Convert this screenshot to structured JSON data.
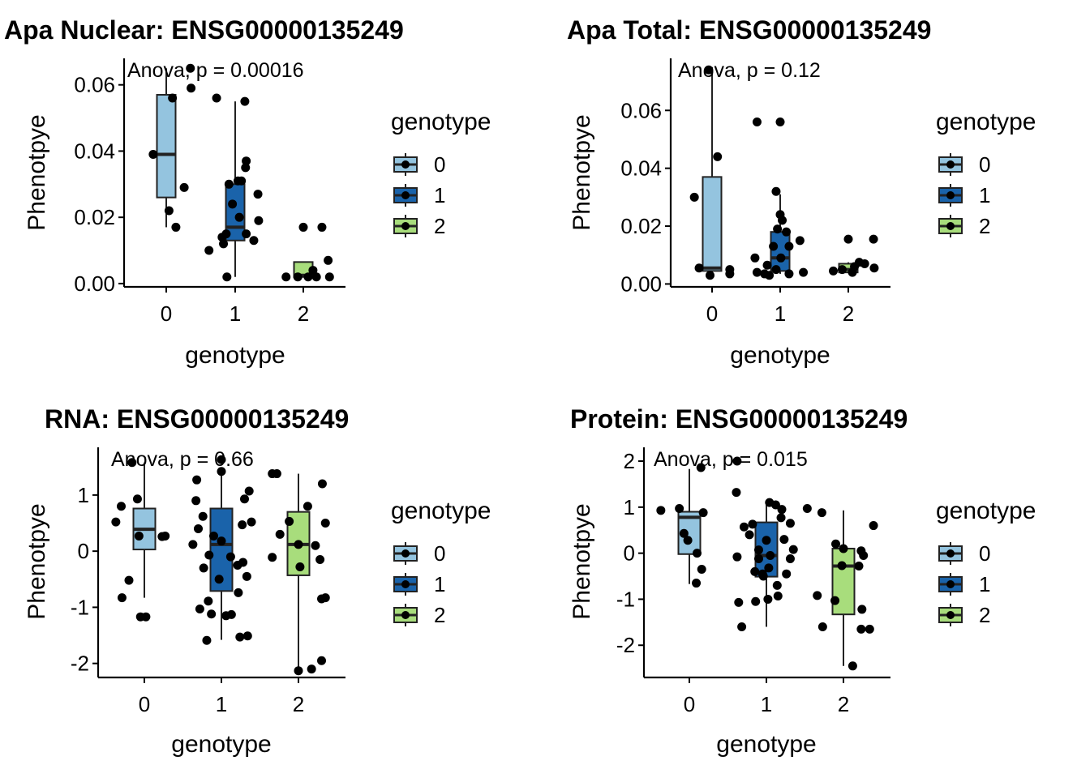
{
  "figure": {
    "colors": {
      "0": "#94c4df",
      "1": "#1a63aa",
      "2": "#a8dd7c",
      "box_stroke": "#222222",
      "point": "#000000"
    }
  },
  "chart_data": [
    {
      "type": "box",
      "title": "Apa Nuclear: ENSG00000135249",
      "annotation": "Anova, p = 0.00016",
      "xlabel": "genotype",
      "ylabel": "Phenotpye",
      "categories": [
        "0",
        "1",
        "2"
      ],
      "ylim": [
        -0.001,
        0.068
      ],
      "yticks": [
        0.0,
        0.02,
        0.04,
        0.06
      ],
      "ytick_labels": [
        "0.00",
        "0.02",
        "0.04",
        "0.06"
      ],
      "legend": {
        "title": "genotype",
        "labels": [
          "0",
          "1",
          "2"
        ],
        "position": "right"
      },
      "boxes": [
        {
          "genotype": "0",
          "whisker_low": 0.017,
          "q1": 0.026,
          "median": 0.039,
          "q3": 0.057,
          "whisker_high": 0.065
        },
        {
          "genotype": "1",
          "whisker_low": 0.002,
          "q1": 0.013,
          "median": 0.017,
          "q3": 0.03,
          "whisker_high": 0.055
        },
        {
          "genotype": "2",
          "whisker_low": 0.002,
          "q1": 0.002,
          "median": 0.0025,
          "q3": 0.0065,
          "whisker_high": 0.0065
        }
      ],
      "points": [
        {
          "g": 0,
          "dx": -0.19,
          "y": 0.039
        },
        {
          "g": 0,
          "dx": 0.35,
          "y": 0.065
        },
        {
          "g": 0,
          "dx": 0.09,
          "y": 0.056
        },
        {
          "g": 0,
          "dx": 0.36,
          "y": 0.059
        },
        {
          "g": 0,
          "dx": 0.26,
          "y": 0.029
        },
        {
          "g": 0,
          "dx": 0.04,
          "y": 0.022
        },
        {
          "g": 0,
          "dx": 0.14,
          "y": 0.017
        },
        {
          "g": 1,
          "dx": -0.27,
          "y": 0.056
        },
        {
          "g": 1,
          "dx": 0.14,
          "y": 0.055
        },
        {
          "g": 1,
          "dx": 0.16,
          "y": 0.037
        },
        {
          "g": 1,
          "dx": 0.15,
          "y": 0.035
        },
        {
          "g": 1,
          "dx": -0.09,
          "y": 0.03
        },
        {
          "g": 1,
          "dx": 0.04,
          "y": 0.031
        },
        {
          "g": 1,
          "dx": 0.09,
          "y": 0.031
        },
        {
          "g": 1,
          "dx": 0.33,
          "y": 0.027
        },
        {
          "g": 1,
          "dx": -0.04,
          "y": 0.024
        },
        {
          "g": 1,
          "dx": 0.06,
          "y": 0.02
        },
        {
          "g": 1,
          "dx": 0.34,
          "y": 0.019
        },
        {
          "g": 1,
          "dx": -0.19,
          "y": 0.014
        },
        {
          "g": 1,
          "dx": -0.13,
          "y": 0.015
        },
        {
          "g": 1,
          "dx": -0.17,
          "y": 0.012
        },
        {
          "g": 1,
          "dx": 0.16,
          "y": 0.015
        },
        {
          "g": 1,
          "dx": 0.27,
          "y": 0.013
        },
        {
          "g": 1,
          "dx": -0.38,
          "y": 0.01
        },
        {
          "g": 1,
          "dx": -0.12,
          "y": 0.002
        },
        {
          "g": 2,
          "dx": -0.25,
          "y": 0.002
        },
        {
          "g": 2,
          "dx": -0.08,
          "y": 0.002
        },
        {
          "g": 2,
          "dx": 0.07,
          "y": 0.002
        },
        {
          "g": 2,
          "dx": 0.19,
          "y": 0.002
        },
        {
          "g": 2,
          "dx": 0.38,
          "y": 0.002
        },
        {
          "g": 2,
          "dx": 0.0,
          "y": 0.017
        },
        {
          "g": 2,
          "dx": 0.27,
          "y": 0.017
        },
        {
          "g": 2,
          "dx": 0.36,
          "y": 0.007
        },
        {
          "g": 2,
          "dx": 0.14,
          "y": 0.004
        }
      ]
    },
    {
      "type": "box",
      "title": "Apa Total: ENSG00000135249",
      "annotation": "Anova, p = 0.12",
      "xlabel": "genotype",
      "ylabel": "Phenotpye",
      "categories": [
        "0",
        "1",
        "2"
      ],
      "ylim": [
        -0.001,
        0.078
      ],
      "yticks": [
        0.0,
        0.02,
        0.04,
        0.06
      ],
      "ytick_labels": [
        "0.00",
        "0.02",
        "0.04",
        "0.06"
      ],
      "legend": {
        "title": "genotype",
        "labels": [
          "0",
          "1",
          "2"
        ],
        "position": "right"
      },
      "boxes": [
        {
          "genotype": "0",
          "whisker_low": 0.0035,
          "q1": 0.0045,
          "median": 0.0055,
          "q3": 0.037,
          "whisker_high": 0.075
        },
        {
          "genotype": "1",
          "whisker_low": 0.0035,
          "q1": 0.0045,
          "median": 0.009,
          "q3": 0.018,
          "whisker_high": 0.031
        },
        {
          "genotype": "2",
          "whisker_low": 0.004,
          "q1": 0.004,
          "median": 0.005,
          "q3": 0.007,
          "whisker_high": 0.0075
        }
      ],
      "points": [
        {
          "g": 0,
          "dx": -0.26,
          "y": 0.03
        },
        {
          "g": 0,
          "dx": -0.05,
          "y": 0.074
        },
        {
          "g": 0,
          "dx": 0.08,
          "y": 0.044
        },
        {
          "g": 0,
          "dx": -0.19,
          "y": 0.0055
        },
        {
          "g": 0,
          "dx": 0.26,
          "y": 0.005
        },
        {
          "g": 0,
          "dx": -0.03,
          "y": 0.003
        },
        {
          "g": 0,
          "dx": 0.26,
          "y": 0.0035
        },
        {
          "g": 1,
          "dx": -0.34,
          "y": 0.056
        },
        {
          "g": 1,
          "dx": 0.0,
          "y": 0.056
        },
        {
          "g": 1,
          "dx": -0.06,
          "y": 0.032
        },
        {
          "g": 1,
          "dx": 0.0,
          "y": 0.024
        },
        {
          "g": 1,
          "dx": 0.03,
          "y": 0.022
        },
        {
          "g": 1,
          "dx": -0.04,
          "y": 0.019
        },
        {
          "g": 1,
          "dx": 0.09,
          "y": 0.018
        },
        {
          "g": 1,
          "dx": 0.29,
          "y": 0.015
        },
        {
          "g": 1,
          "dx": -0.1,
          "y": 0.013
        },
        {
          "g": 1,
          "dx": 0.13,
          "y": 0.013
        },
        {
          "g": 1,
          "dx": -0.37,
          "y": 0.009
        },
        {
          "g": 1,
          "dx": -0.19,
          "y": 0.0065
        },
        {
          "g": 1,
          "dx": 0.01,
          "y": 0.009
        },
        {
          "g": 1,
          "dx": -0.34,
          "y": 0.004
        },
        {
          "g": 1,
          "dx": -0.23,
          "y": 0.0035
        },
        {
          "g": 1,
          "dx": -0.16,
          "y": 0.003
        },
        {
          "g": 1,
          "dx": 0.13,
          "y": 0.0035
        },
        {
          "g": 1,
          "dx": 0.34,
          "y": 0.004
        },
        {
          "g": 1,
          "dx": -0.06,
          "y": 0.005
        },
        {
          "g": 2,
          "dx": -0.22,
          "y": 0.0045
        },
        {
          "g": 2,
          "dx": -0.09,
          "y": 0.005
        },
        {
          "g": 2,
          "dx": 0.0,
          "y": 0.0155
        },
        {
          "g": 2,
          "dx": 0.09,
          "y": 0.006
        },
        {
          "g": 2,
          "dx": 0.16,
          "y": 0.0075
        },
        {
          "g": 2,
          "dx": 0.24,
          "y": 0.007
        },
        {
          "g": 2,
          "dx": 0.37,
          "y": 0.0155
        },
        {
          "g": 2,
          "dx": 0.38,
          "y": 0.0055
        },
        {
          "g": 2,
          "dx": 0.06,
          "y": 0.004
        }
      ]
    },
    {
      "type": "box",
      "title": "RNA: ENSG00000135249",
      "annotation": "Anova, p = 0.66",
      "xlabel": "genotype",
      "ylabel": "Phenotpye",
      "categories": [
        "0",
        "1",
        "2"
      ],
      "ylim": [
        -2.25,
        1.85
      ],
      "yticks": [
        -2,
        -1,
        0,
        1
      ],
      "ytick_labels": [
        "-2",
        "-1",
        "0",
        "1"
      ],
      "legend": {
        "title": "genotype",
        "labels": [
          "0",
          "1",
          "2"
        ],
        "position": "right"
      },
      "boxes": [
        {
          "genotype": "0",
          "whisker_low": -0.83,
          "q1": 0.03,
          "median": 0.39,
          "q3": 0.76,
          "whisker_high": 1.58
        },
        {
          "genotype": "1",
          "whisker_low": -1.58,
          "q1": -0.71,
          "median": 0.12,
          "q3": 0.76,
          "whisker_high": 1.42
        },
        {
          "genotype": "2",
          "whisker_low": -2.13,
          "q1": -0.43,
          "median": 0.12,
          "q3": 0.7,
          "whisker_high": 1.38
        }
      ],
      "points": [
        {
          "g": 0,
          "dx": -0.16,
          "y": 1.58
        },
        {
          "g": 0,
          "dx": -0.3,
          "y": 0.8
        },
        {
          "g": 0,
          "dx": -0.09,
          "y": 0.93
        },
        {
          "g": 0,
          "dx": -0.37,
          "y": 0.52
        },
        {
          "g": 0,
          "dx": -0.07,
          "y": 0.27
        },
        {
          "g": 0,
          "dx": 0.23,
          "y": 0.26
        },
        {
          "g": 0,
          "dx": 0.27,
          "y": 0.27
        },
        {
          "g": 0,
          "dx": -0.2,
          "y": -0.52
        },
        {
          "g": 0,
          "dx": -0.29,
          "y": -0.83
        },
        {
          "g": 0,
          "dx": -0.05,
          "y": -1.17
        },
        {
          "g": 0,
          "dx": 0.02,
          "y": -1.17
        },
        {
          "g": 1,
          "dx": 0.0,
          "y": 1.63
        },
        {
          "g": 1,
          "dx": 0.0,
          "y": 1.42
        },
        {
          "g": 1,
          "dx": -0.32,
          "y": 1.27
        },
        {
          "g": 1,
          "dx": 0.36,
          "y": 1.07
        },
        {
          "g": 1,
          "dx": -0.33,
          "y": 0.9
        },
        {
          "g": 1,
          "dx": 0.3,
          "y": 0.93
        },
        {
          "g": 1,
          "dx": -0.3,
          "y": 0.4
        },
        {
          "g": 1,
          "dx": -0.37,
          "y": 0.12
        },
        {
          "g": 1,
          "dx": 0.0,
          "y": 0.18
        },
        {
          "g": 1,
          "dx": 0.27,
          "y": 0.47
        },
        {
          "g": 1,
          "dx": 0.39,
          "y": 0.52
        },
        {
          "g": 1,
          "dx": -0.24,
          "y": 0.62
        },
        {
          "g": 1,
          "dx": -0.1,
          "y": 0.27
        },
        {
          "g": 1,
          "dx": -0.16,
          "y": -0.07
        },
        {
          "g": 1,
          "dx": 0.12,
          "y": -0.1
        },
        {
          "g": 1,
          "dx": 0.21,
          "y": -0.25
        },
        {
          "g": 1,
          "dx": -0.23,
          "y": -0.3
        },
        {
          "g": 1,
          "dx": 0.28,
          "y": -0.2
        },
        {
          "g": 1,
          "dx": 0.33,
          "y": -0.45
        },
        {
          "g": 1,
          "dx": -0.03,
          "y": -0.5
        },
        {
          "g": 1,
          "dx": 0.22,
          "y": -0.74
        },
        {
          "g": 1,
          "dx": -0.17,
          "y": -0.89
        },
        {
          "g": 1,
          "dx": -0.28,
          "y": -1.03
        },
        {
          "g": 1,
          "dx": -0.13,
          "y": -1.12
        },
        {
          "g": 1,
          "dx": 0.06,
          "y": -1.15
        },
        {
          "g": 1,
          "dx": 0.13,
          "y": -1.13
        },
        {
          "g": 1,
          "dx": -0.19,
          "y": -1.59
        },
        {
          "g": 1,
          "dx": 0.24,
          "y": -1.53
        },
        {
          "g": 1,
          "dx": 0.34,
          "y": -1.51
        },
        {
          "g": 2,
          "dx": -0.34,
          "y": 1.38
        },
        {
          "g": 2,
          "dx": -0.28,
          "y": 1.38
        },
        {
          "g": 2,
          "dx": 0.31,
          "y": 1.2
        },
        {
          "g": 2,
          "dx": 0.12,
          "y": 0.8
        },
        {
          "g": 2,
          "dx": -0.12,
          "y": 0.53
        },
        {
          "g": 2,
          "dx": 0.35,
          "y": 0.5
        },
        {
          "g": 2,
          "dx": -0.24,
          "y": 0.3
        },
        {
          "g": 2,
          "dx": 0.0,
          "y": 0.12
        },
        {
          "g": 2,
          "dx": 0.22,
          "y": 0.1
        },
        {
          "g": 2,
          "dx": 0.28,
          "y": -0.15
        },
        {
          "g": 2,
          "dx": -0.34,
          "y": -0.11
        },
        {
          "g": 2,
          "dx": 0.02,
          "y": -0.28
        },
        {
          "g": 2,
          "dx": 0.3,
          "y": -0.85
        },
        {
          "g": 2,
          "dx": 0.35,
          "y": -0.83
        },
        {
          "g": 2,
          "dx": 0.0,
          "y": -2.13
        },
        {
          "g": 2,
          "dx": 0.17,
          "y": -2.1
        },
        {
          "g": 2,
          "dx": 0.3,
          "y": -1.95
        }
      ]
    },
    {
      "type": "box",
      "title": "Protein: ENSG00000135249",
      "annotation": "Anova, p = 0.015",
      "xlabel": "genotype",
      "ylabel": "Phenotpye",
      "categories": [
        "0",
        "1",
        "2"
      ],
      "ylim": [
        -2.7,
        2.3
      ],
      "yticks": [
        -2,
        -1,
        0,
        1,
        2
      ],
      "ytick_labels": [
        "-2",
        "-1",
        "0",
        "1",
        "2"
      ],
      "legend": {
        "title": "genotype",
        "labels": [
          "0",
          "1",
          "2"
        ],
        "position": "right"
      },
      "boxes": [
        {
          "genotype": "0",
          "whisker_low": -0.67,
          "q1": -0.02,
          "median": 0.78,
          "q3": 0.9,
          "whisker_high": 1.83
        },
        {
          "genotype": "1",
          "whisker_low": -1.6,
          "q1": -0.51,
          "median": -0.05,
          "q3": 0.67,
          "whisker_high": 1.12
        },
        {
          "genotype": "2",
          "whisker_low": -2.45,
          "q1": -1.33,
          "median": -0.28,
          "q3": 0.1,
          "whisker_high": 0.93
        }
      ],
      "points": [
        {
          "g": 0,
          "dx": -0.37,
          "y": 0.93
        },
        {
          "g": 0,
          "dx": -0.13,
          "y": 0.97
        },
        {
          "g": 0,
          "dx": 0.18,
          "y": 0.88
        },
        {
          "g": 0,
          "dx": 0.15,
          "y": 1.86
        },
        {
          "g": 0,
          "dx": -0.07,
          "y": 0.43
        },
        {
          "g": 0,
          "dx": -0.02,
          "y": 0.28
        },
        {
          "g": 0,
          "dx": 0.1,
          "y": 0.0
        },
        {
          "g": 0,
          "dx": 0.16,
          "y": -0.35
        },
        {
          "g": 0,
          "dx": 0.09,
          "y": -0.65
        },
        {
          "g": 1,
          "dx": -0.38,
          "y": 2.0
        },
        {
          "g": 1,
          "dx": -0.39,
          "y": 1.32
        },
        {
          "g": 1,
          "dx": 0.04,
          "y": 1.1
        },
        {
          "g": 1,
          "dx": 0.12,
          "y": 1.05
        },
        {
          "g": 1,
          "dx": 0.2,
          "y": 0.95
        },
        {
          "g": 1,
          "dx": -0.18,
          "y": 0.63
        },
        {
          "g": 1,
          "dx": -0.29,
          "y": 0.57
        },
        {
          "g": 1,
          "dx": 0.19,
          "y": 0.77
        },
        {
          "g": 1,
          "dx": 0.31,
          "y": 0.65
        },
        {
          "g": 1,
          "dx": 0.0,
          "y": 0.28
        },
        {
          "g": 1,
          "dx": -0.22,
          "y": 0.4
        },
        {
          "g": 1,
          "dx": 0.23,
          "y": 0.3
        },
        {
          "g": 1,
          "dx": 0.35,
          "y": 0.08
        },
        {
          "g": 1,
          "dx": -0.1,
          "y": 0.07
        },
        {
          "g": 1,
          "dx": -0.38,
          "y": -0.08
        },
        {
          "g": 1,
          "dx": -0.1,
          "y": -0.12
        },
        {
          "g": 1,
          "dx": 0.05,
          "y": -0.05
        },
        {
          "g": 1,
          "dx": 0.31,
          "y": -0.12
        },
        {
          "g": 1,
          "dx": -0.15,
          "y": -0.4
        },
        {
          "g": 1,
          "dx": 0.03,
          "y": -0.32
        },
        {
          "g": 1,
          "dx": -0.05,
          "y": -0.45
        },
        {
          "g": 1,
          "dx": 0.26,
          "y": -0.45
        },
        {
          "g": 1,
          "dx": -0.04,
          "y": -0.5
        },
        {
          "g": 1,
          "dx": 0.14,
          "y": -0.7
        },
        {
          "g": 1,
          "dx": -0.36,
          "y": -1.07
        },
        {
          "g": 1,
          "dx": -0.14,
          "y": -1.05
        },
        {
          "g": 1,
          "dx": 0.02,
          "y": -1.0
        },
        {
          "g": 1,
          "dx": 0.15,
          "y": -0.93
        },
        {
          "g": 1,
          "dx": -0.32,
          "y": -1.6
        },
        {
          "g": 2,
          "dx": -0.47,
          "y": 0.97
        },
        {
          "g": 2,
          "dx": -0.28,
          "y": 0.88
        },
        {
          "g": 2,
          "dx": -0.1,
          "y": 0.2
        },
        {
          "g": 2,
          "dx": 0.0,
          "y": 0.1
        },
        {
          "g": 2,
          "dx": 0.23,
          "y": 0.05
        },
        {
          "g": 2,
          "dx": 0.39,
          "y": 0.6
        },
        {
          "g": 2,
          "dx": 0.26,
          "y": -0.05
        },
        {
          "g": 2,
          "dx": -0.02,
          "y": -0.27
        },
        {
          "g": 2,
          "dx": 0.2,
          "y": -0.28
        },
        {
          "g": 2,
          "dx": -0.34,
          "y": -0.92
        },
        {
          "g": 2,
          "dx": -0.11,
          "y": -1.03
        },
        {
          "g": 2,
          "dx": 0.24,
          "y": -1.22
        },
        {
          "g": 2,
          "dx": -0.27,
          "y": -1.6
        },
        {
          "g": 2,
          "dx": 0.23,
          "y": -1.65
        },
        {
          "g": 2,
          "dx": 0.34,
          "y": -1.65
        },
        {
          "g": 2,
          "dx": 0.12,
          "y": -2.45
        }
      ]
    }
  ]
}
